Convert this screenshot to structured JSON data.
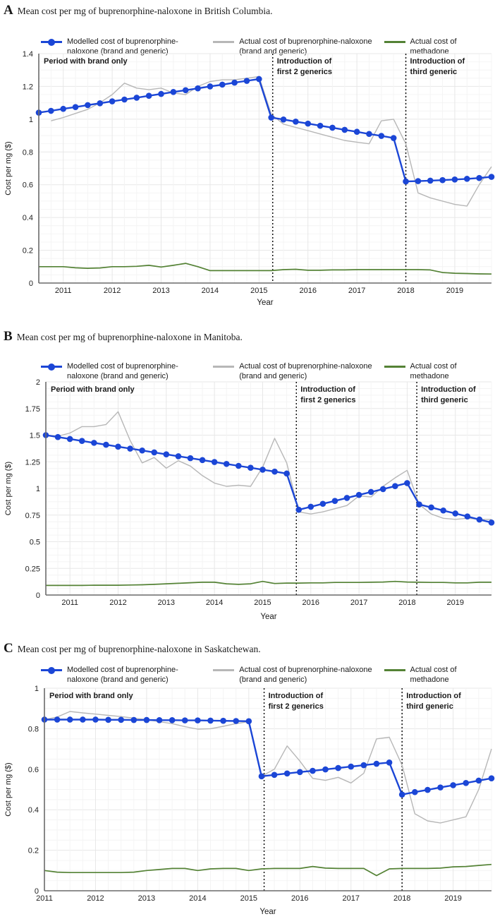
{
  "colors": {
    "modelled": "#1b46d6",
    "actual": "#b7b7b7",
    "methadone": "#548235",
    "vline": "#111111",
    "axis": "#6a6a6a",
    "grid_major": "#e7e7e7",
    "grid_minor": "#f4f4f4",
    "text": "#1a1a1a"
  },
  "legend": {
    "modelled": "Modelled cost of buprenorphine-naloxone (brand and generic)",
    "actual": "Actual cost of buprenorphine-naloxone (brand and generic)",
    "methadone": "Actual cost of methadone"
  },
  "chart_data": [
    {
      "type": "line",
      "letter": "A",
      "title": "Mean cost per mg of buprenorphine-naloxone in British Columbia.",
      "xlabel": "Year",
      "ylabel": "Cost per mg ($)",
      "xlim": [
        2010.5,
        2019.75
      ],
      "ylim": [
        0,
        1.4
      ],
      "ytick_step": 0.2,
      "yticks": [
        {
          "v": 0,
          "label": "0"
        },
        {
          "v": 0.2,
          "label": "0.2"
        },
        {
          "v": 0.4,
          "label": "0.4"
        },
        {
          "v": 0.6,
          "label": "0.6"
        },
        {
          "v": 0.8,
          "label": "0.8"
        },
        {
          "v": 1,
          "label": "1"
        },
        {
          "v": 1.2,
          "label": "1.2"
        },
        {
          "v": 1.4,
          "label": "1.4"
        }
      ],
      "xticks": [
        2011,
        2012,
        2013,
        2014,
        2015,
        2016,
        2017,
        2018,
        2019
      ],
      "vlines": [
        2015.28,
        2018.0
      ],
      "annotations": {
        "brand_only": "Period with brand only",
        "gen2": [
          "Introduction of",
          "first 2 generics"
        ],
        "gen3": [
          "Introduction of",
          "third generic"
        ]
      },
      "series": {
        "modelled": {
          "x_start": 2010.5,
          "x_step": 0.25,
          "y": [
            1.04,
            1.051,
            1.063,
            1.074,
            1.086,
            1.097,
            1.109,
            1.12,
            1.131,
            1.143,
            1.154,
            1.166,
            1.177,
            1.188,
            1.2,
            1.211,
            1.223,
            1.234,
            1.245,
            1.01,
            0.998,
            0.985,
            0.973,
            0.96,
            0.948,
            0.935,
            0.923,
            0.91,
            0.898,
            0.885,
            0.62,
            0.622,
            0.625,
            0.628,
            0.632,
            0.636,
            0.641,
            0.648
          ]
        },
        "actual": {
          "x_start": 2010.75,
          "x_step": 0.25,
          "y": [
            0.99,
            1.01,
            1.035,
            1.06,
            1.1,
            1.15,
            1.22,
            1.19,
            1.18,
            1.19,
            1.16,
            1.15,
            1.2,
            1.23,
            1.24,
            1.24,
            1.25,
            1.26,
            1.03,
            0.97,
            0.95,
            0.93,
            0.91,
            0.89,
            0.87,
            0.86,
            0.85,
            0.99,
            1.0,
            0.85,
            0.55,
            0.52,
            0.5,
            0.48,
            0.47,
            0.6,
            0.71
          ]
        },
        "methadone": {
          "x_start": 2010.5,
          "x_step": 0.25,
          "y": [
            0.1,
            0.1,
            0.1,
            0.093,
            0.09,
            0.092,
            0.1,
            0.1,
            0.102,
            0.108,
            0.098,
            0.108,
            0.12,
            0.1,
            0.076,
            0.076,
            0.076,
            0.076,
            0.076,
            0.076,
            0.082,
            0.084,
            0.078,
            0.078,
            0.08,
            0.08,
            0.082,
            0.082,
            0.082,
            0.082,
            0.082,
            0.082,
            0.08,
            0.064,
            0.06,
            0.058,
            0.056,
            0.055
          ]
        }
      }
    },
    {
      "type": "line",
      "letter": "B",
      "title": "Mean cost per mg of buprenorphine-naloxone in Manitoba.",
      "xlabel": "Year",
      "ylabel": "Cost per mg ($)",
      "xlim": [
        2010.5,
        2019.75
      ],
      "ylim": [
        0,
        2
      ],
      "ytick_step": 0.25,
      "yticks": [
        {
          "v": 0,
          "label": "0"
        },
        {
          "v": 0.25,
          "label": "0.25"
        },
        {
          "v": 0.5,
          "label": "0.5"
        },
        {
          "v": 0.75,
          "label": "0.75"
        },
        {
          "v": 1,
          "label": "1"
        },
        {
          "v": 1.25,
          "label": "1.25"
        },
        {
          "v": 1.5,
          "label": "1.5"
        },
        {
          "v": 1.75,
          "label": "1.75"
        },
        {
          "v": 2,
          "label": "2"
        }
      ],
      "xticks": [
        2011,
        2012,
        2013,
        2014,
        2015,
        2016,
        2017,
        2018,
        2019
      ],
      "vlines": [
        2015.7,
        2018.2
      ],
      "annotations": {
        "brand_only": "Period with brand only",
        "gen2": [
          "Introduction of",
          "first 2 generics"
        ],
        "gen3": [
          "Introduction of",
          "third generic"
        ]
      },
      "series": {
        "modelled": {
          "x_start": 2010.5,
          "x_step": 0.25,
          "y": [
            1.5,
            1.482,
            1.464,
            1.446,
            1.428,
            1.41,
            1.392,
            1.374,
            1.356,
            1.338,
            1.32,
            1.302,
            1.284,
            1.266,
            1.248,
            1.23,
            1.212,
            1.194,
            1.176,
            1.158,
            1.14,
            0.8,
            0.828,
            0.856,
            0.883,
            0.911,
            0.939,
            0.967,
            0.994,
            1.022,
            1.05,
            0.85,
            0.822,
            0.793,
            0.765,
            0.737,
            0.708,
            0.68
          ]
        },
        "actual": {
          "x_start": 2010.5,
          "x_step": 0.25,
          "y": [
            1.5,
            1.49,
            1.52,
            1.58,
            1.58,
            1.6,
            1.72,
            1.45,
            1.24,
            1.29,
            1.19,
            1.26,
            1.21,
            1.12,
            1.05,
            1.02,
            1.03,
            1.02,
            1.2,
            1.47,
            1.24,
            0.78,
            0.76,
            0.78,
            0.81,
            0.84,
            0.93,
            0.92,
            1.02,
            1.1,
            1.17,
            0.85,
            0.76,
            0.72,
            0.71,
            0.72,
            0.71,
            0.71
          ]
        },
        "methadone": {
          "x_start": 2010.5,
          "x_step": 0.25,
          "y": [
            0.09,
            0.09,
            0.09,
            0.09,
            0.092,
            0.092,
            0.092,
            0.094,
            0.096,
            0.1,
            0.105,
            0.11,
            0.115,
            0.12,
            0.12,
            0.105,
            0.1,
            0.105,
            0.128,
            0.108,
            0.112,
            0.112,
            0.114,
            0.114,
            0.118,
            0.118,
            0.118,
            0.12,
            0.122,
            0.128,
            0.122,
            0.12,
            0.118,
            0.118,
            0.114,
            0.114,
            0.12,
            0.12
          ]
        }
      }
    },
    {
      "type": "line",
      "letter": "C",
      "title": "Mean cost per mg of buprenorphine-naloxone in Saskatchewan.",
      "xlabel": "Year",
      "ylabel": "Cost per mg ($)",
      "xlim": [
        2011.0,
        2019.75
      ],
      "ylim": [
        0,
        1
      ],
      "ytick_step": 0.2,
      "yticks": [
        {
          "v": 0,
          "label": "0"
        },
        {
          "v": 0.2,
          "label": "0.2"
        },
        {
          "v": 0.4,
          "label": "0.4"
        },
        {
          "v": 0.6,
          "label": "0.6"
        },
        {
          "v": 0.8,
          "label": "0.8"
        },
        {
          "v": 1,
          "label": "1"
        }
      ],
      "xticks": [
        2011,
        2012,
        2013,
        2014,
        2015,
        2016,
        2017,
        2018,
        2019
      ],
      "vlines": [
        2015.3,
        2018.0
      ],
      "annotations": {
        "brand_only": "Period with brand only",
        "gen2": [
          "Introduction of",
          "first 2 generics"
        ],
        "gen3": [
          "Introduction of",
          "third generic"
        ]
      },
      "series": {
        "modelled": {
          "x_start": 2011.0,
          "x_step": 0.25,
          "y": [
            0.845,
            0.845,
            0.845,
            0.845,
            0.845,
            0.844,
            0.844,
            0.843,
            0.843,
            0.842,
            0.842,
            0.841,
            0.841,
            0.84,
            0.839,
            0.838,
            0.837,
            0.565,
            0.572,
            0.579,
            0.586,
            0.592,
            0.599,
            0.606,
            0.613,
            0.62,
            0.627,
            0.633,
            0.475,
            0.487,
            0.498,
            0.51,
            0.521,
            0.532,
            0.544,
            0.555
          ]
        },
        "actual": {
          "x_start": 2011.0,
          "x_step": 0.25,
          "y": [
            0.845,
            0.858,
            0.885,
            0.878,
            0.872,
            0.866,
            0.86,
            0.852,
            0.845,
            0.835,
            0.825,
            0.81,
            0.798,
            0.8,
            0.812,
            0.825,
            0.835,
            0.565,
            0.6,
            0.715,
            0.64,
            0.555,
            0.545,
            0.56,
            0.532,
            0.58,
            0.75,
            0.758,
            0.62,
            0.38,
            0.345,
            0.335,
            0.35,
            0.365,
            0.5,
            0.7
          ]
        },
        "methadone": {
          "x_start": 2011.0,
          "x_step": 0.25,
          "y": [
            0.1,
            0.092,
            0.09,
            0.09,
            0.09,
            0.09,
            0.09,
            0.092,
            0.1,
            0.105,
            0.11,
            0.11,
            0.1,
            0.108,
            0.11,
            0.11,
            0.1,
            0.108,
            0.11,
            0.11,
            0.11,
            0.12,
            0.112,
            0.11,
            0.11,
            0.11,
            0.075,
            0.108,
            0.11,
            0.11,
            0.11,
            0.112,
            0.118,
            0.12,
            0.125,
            0.13
          ]
        }
      }
    }
  ]
}
